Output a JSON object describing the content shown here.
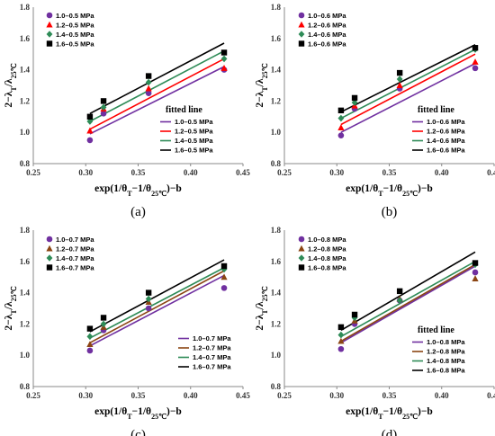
{
  "colors": [
    "#7030a0",
    "#ff0000",
    "#2e8b57",
    "#000000"
  ],
  "marker_shapes": [
    "circle",
    "triangle",
    "diamond",
    "square"
  ],
  "chart_data": [
    {
      "type": "scatter",
      "panel_label": "(a)",
      "ylabel": "2−λT/λ25℃",
      "xlabel": "exp(1/θT−1/θ25℃)−b",
      "xlim": [
        0.25,
        0.45
      ],
      "ylim": [
        0.8,
        1.8
      ],
      "xticks": [
        "0.25",
        "0.30",
        "0.35",
        "0.40",
        "0.45"
      ],
      "yticks": [
        "0.8",
        "1.0",
        "1.2",
        "1.4",
        "1.6",
        "1.8"
      ],
      "marker_shapes": [
        "circle",
        "triangle",
        "diamond",
        "square"
      ],
      "colors": [
        "#7030a0",
        "#ff0000",
        "#2e8b57",
        "#000000"
      ],
      "fitted_title": "fitted line",
      "series": [
        {
          "name": "1.0–0.5 MPa",
          "x": [
            0.304,
            0.317,
            0.36,
            0.432
          ],
          "y": [
            0.95,
            1.12,
            1.25,
            1.4
          ],
          "fit": [
            [
              0.304,
              0.99
            ],
            [
              0.432,
              1.42
            ]
          ]
        },
        {
          "name": "1.2–0.5 MPa",
          "x": [
            0.304,
            0.317,
            0.36,
            0.432
          ],
          "y": [
            1.01,
            1.15,
            1.28,
            1.41
          ],
          "fit": [
            [
              0.304,
              1.02
            ],
            [
              0.432,
              1.47
            ]
          ]
        },
        {
          "name": "1.4–0.5 MPa",
          "x": [
            0.304,
            0.317,
            0.36,
            0.432
          ],
          "y": [
            1.07,
            1.16,
            1.32,
            1.47
          ],
          "fit": [
            [
              0.304,
              1.07
            ],
            [
              0.432,
              1.52
            ]
          ]
        },
        {
          "name": "1.6–0.5 MPa",
          "x": [
            0.304,
            0.317,
            0.36,
            0.432
          ],
          "y": [
            1.1,
            1.2,
            1.36,
            1.51
          ],
          "fit": [
            [
              0.304,
              1.12
            ],
            [
              0.432,
              1.57
            ]
          ]
        }
      ]
    },
    {
      "type": "scatter",
      "panel_label": "(b)",
      "ylabel": "2−λT/λ25℃",
      "xlabel": "exp(1/θT−1/θ25℃)−b",
      "xlim": [
        0.25,
        0.45
      ],
      "ylim": [
        0.8,
        1.8
      ],
      "xticks": [
        "0.25",
        "0.30",
        "0.35",
        "0.40",
        "0.45"
      ],
      "yticks": [
        "0.8",
        "1.0",
        "1.2",
        "1.4",
        "1.6",
        "1.8"
      ],
      "marker_shapes": [
        "circle",
        "triangle",
        "diamond",
        "square"
      ],
      "colors": [
        "#7030a0",
        "#ff0000",
        "#2e8b57",
        "#000000"
      ],
      "fitted_title": "fitted line",
      "series": [
        {
          "name": "1.0–0.6 MPa",
          "x": [
            0.304,
            0.317,
            0.36,
            0.432
          ],
          "y": [
            0.98,
            1.15,
            1.28,
            1.41
          ],
          "fit": [
            [
              0.304,
              1.0
            ],
            [
              0.432,
              1.44
            ]
          ]
        },
        {
          "name": "1.2–0.6 MPa",
          "x": [
            0.304,
            0.317,
            0.36,
            0.432
          ],
          "y": [
            1.03,
            1.17,
            1.3,
            1.45
          ],
          "fit": [
            [
              0.304,
              1.05
            ],
            [
              0.432,
              1.5
            ]
          ]
        },
        {
          "name": "1.4–0.6 MPa",
          "x": [
            0.304,
            0.317,
            0.36,
            0.432
          ],
          "y": [
            1.09,
            1.19,
            1.34,
            1.53
          ],
          "fit": [
            [
              0.304,
              1.09
            ],
            [
              0.432,
              1.53
            ]
          ]
        },
        {
          "name": "1.6–0.6 MPa",
          "x": [
            0.304,
            0.317,
            0.36,
            0.432
          ],
          "y": [
            1.14,
            1.22,
            1.38,
            1.54
          ],
          "fit": [
            [
              0.304,
              1.13
            ],
            [
              0.432,
              1.56
            ]
          ]
        }
      ]
    },
    {
      "type": "scatter",
      "panel_label": "(c)",
      "ylabel": "2−λT/λ25℃",
      "xlabel": "exp(1/θT−1/θ25℃)−b",
      "xlim": [
        0.25,
        0.45
      ],
      "ylim": [
        0.8,
        1.8
      ],
      "xticks": [
        "0.25",
        "0.30",
        "0.35",
        "0.40",
        "0.45"
      ],
      "yticks": [
        "0.8",
        "1.0",
        "1.2",
        "1.4",
        "1.6",
        "1.8"
      ],
      "marker_shapes": [
        "circle",
        "triangle",
        "diamond",
        "square"
      ],
      "colors": [
        "#7030a0",
        "#8b4513",
        "#2e8b57",
        "#000000"
      ],
      "fitted_title": "",
      "series": [
        {
          "name": "1.0–0.7 MPa",
          "x": [
            0.304,
            0.317,
            0.36,
            0.432
          ],
          "y": [
            1.03,
            1.16,
            1.3,
            1.43
          ],
          "fit": [
            [
              0.304,
              1.06
            ],
            [
              0.432,
              1.51
            ]
          ]
        },
        {
          "name": "1.2–0.7 MPa",
          "x": [
            0.304,
            0.317,
            0.36,
            0.432
          ],
          "y": [
            1.07,
            1.18,
            1.34,
            1.5
          ],
          "fit": [
            [
              0.304,
              1.08
            ],
            [
              0.432,
              1.54
            ]
          ]
        },
        {
          "name": "1.4–0.7 MPa",
          "x": [
            0.304,
            0.317,
            0.36,
            0.432
          ],
          "y": [
            1.12,
            1.2,
            1.36,
            1.55
          ],
          "fit": [
            [
              0.304,
              1.11
            ],
            [
              0.432,
              1.56
            ]
          ]
        },
        {
          "name": "1.6–0.7 MPa",
          "x": [
            0.304,
            0.317,
            0.36,
            0.432
          ],
          "y": [
            1.17,
            1.24,
            1.4,
            1.57
          ],
          "fit": [
            [
              0.304,
              1.15
            ],
            [
              0.432,
              1.61
            ]
          ]
        }
      ]
    },
    {
      "type": "scatter",
      "panel_label": "(d)",
      "ylabel": "2−λT/λ25℃",
      "xlabel": "exp(1/θT−1/θ25℃)−b",
      "xlim": [
        0.25,
        0.45
      ],
      "ylim": [
        0.8,
        1.8
      ],
      "xticks": [
        "0.25",
        "0.30",
        "0.35",
        "0.40",
        "0.45"
      ],
      "yticks": [
        "0.8",
        "1.0",
        "1.2",
        "1.4",
        "1.6",
        "1.8"
      ],
      "marker_shapes": [
        "circle",
        "triangle",
        "diamond",
        "square"
      ],
      "colors": [
        "#7030a0",
        "#8b4513",
        "#2e8b57",
        "#000000"
      ],
      "fitted_title": "fitted line",
      "series": [
        {
          "name": "1.0–0.8 MPa",
          "x": [
            0.304,
            0.317,
            0.36,
            0.432
          ],
          "y": [
            1.04,
            1.2,
            1.35,
            1.53
          ],
          "fit": [
            [
              0.304,
              1.08
            ],
            [
              0.432,
              1.57
            ]
          ]
        },
        {
          "name": "1.2–0.8 MPa",
          "x": [
            0.304,
            0.317,
            0.36,
            0.432
          ],
          "y": [
            1.09,
            1.22,
            1.36,
            1.49
          ],
          "fit": [
            [
              0.304,
              1.09
            ],
            [
              0.432,
              1.58
            ]
          ]
        },
        {
          "name": "1.4–0.8 MPa",
          "x": [
            0.304,
            0.317,
            0.36,
            0.432
          ],
          "y": [
            1.13,
            1.24,
            1.35,
            1.58
          ],
          "fit": [
            [
              0.304,
              1.12
            ],
            [
              0.432,
              1.6
            ]
          ]
        },
        {
          "name": "1.6–0.8 MPa",
          "x": [
            0.304,
            0.317,
            0.36,
            0.432
          ],
          "y": [
            1.18,
            1.26,
            1.41,
            1.59
          ],
          "fit": [
            [
              0.304,
              1.16
            ],
            [
              0.432,
              1.66
            ]
          ]
        }
      ]
    }
  ]
}
